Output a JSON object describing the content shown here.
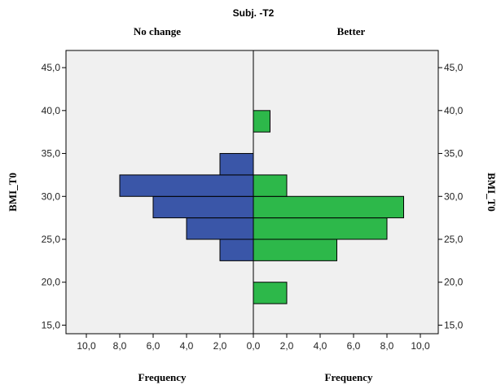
{
  "chart_data": {
    "type": "bar",
    "orientation": "horizontal",
    "layout": "back-to-back (population pyramid)",
    "title": "Subj. -T2",
    "panel_labels": [
      "No change",
      "Better"
    ],
    "ylabel": "BMI_T0",
    "xlabel": "Frequency",
    "ylim": [
      14,
      47
    ],
    "y_ticks": [
      "15,0",
      "20,0",
      "25,0",
      "30,0",
      "35,0",
      "40,0",
      "45,0"
    ],
    "x_ticks_left": [
      "10,0",
      "8,0",
      "6,0",
      "4,0",
      "2,0"
    ],
    "x_ticks_right": [
      "0,0",
      "2,0",
      "4,0",
      "6,0",
      "8,0",
      "10,0"
    ],
    "xlim": [
      0,
      10
    ],
    "bin_width": 2.5,
    "series": [
      {
        "color": "#3a56a8",
        "side": "left",
        "bins": [
          {
            "from": 22.5,
            "to": 25.0,
            "count": 2
          },
          {
            "from": 25.0,
            "to": 27.5,
            "count": 4
          },
          {
            "from": 27.5,
            "to": 30.0,
            "count": 6
          },
          {
            "from": 30.0,
            "to": 32.5,
            "count": 8
          },
          {
            "from": 32.5,
            "to": 35.0,
            "count": 2
          }
        ]
      },
      {
        "color": "#2db84a",
        "side": "right",
        "bins": [
          {
            "from": 17.5,
            "to": 20.0,
            "count": 2
          },
          {
            "from": 22.5,
            "to": 25.0,
            "count": 5
          },
          {
            "from": 25.0,
            "to": 27.5,
            "count": 8
          },
          {
            "from": 27.5,
            "to": 30.0,
            "count": 9
          },
          {
            "from": 30.0,
            "to": 32.5,
            "count": 2
          },
          {
            "from": 37.5,
            "to": 40.0,
            "count": 1
          }
        ]
      }
    ],
    "plot_background": "#f0f0f0",
    "grid": false
  }
}
